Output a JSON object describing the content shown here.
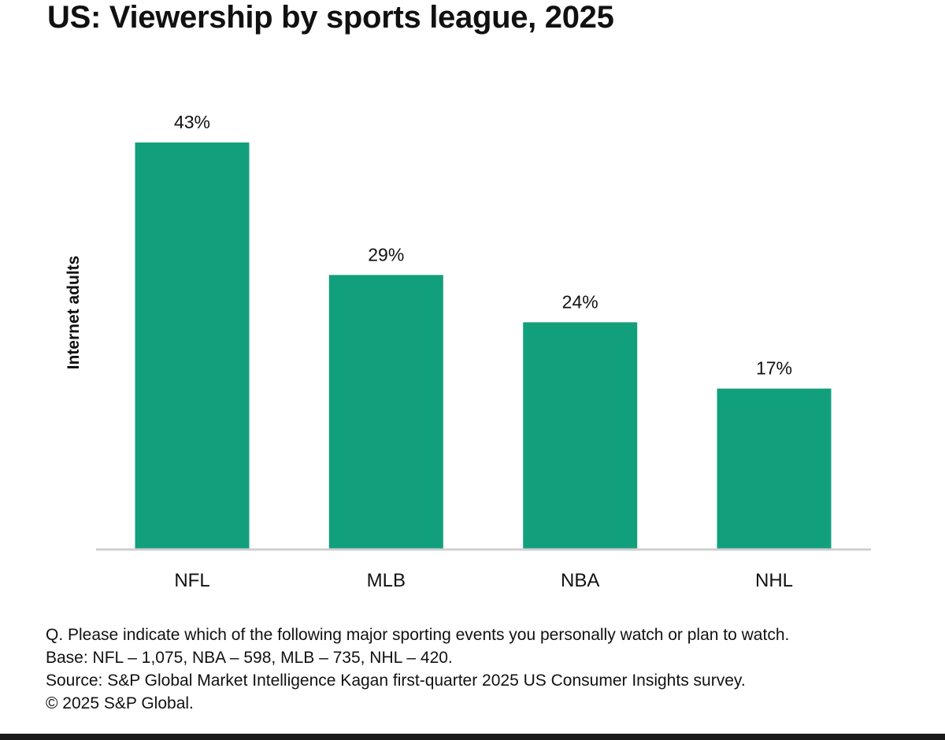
{
  "title": "US: Viewership by sports league, 2025",
  "colors": {
    "bar": "#12a07c",
    "axis": "#cfcfcf",
    "text": "#111111"
  },
  "chart_data": {
    "type": "bar",
    "categories": [
      "NFL",
      "MLB",
      "NBA",
      "NHL"
    ],
    "values": [
      43,
      29,
      24,
      17
    ],
    "value_labels": [
      "43%",
      "29%",
      "24%",
      "17%"
    ],
    "unit": "%",
    "title": "US: Viewership by sports league, 2025",
    "xlabel": "",
    "ylabel": "Internet adults",
    "ylim": [
      0,
      43
    ],
    "grid": false,
    "legend": "none"
  },
  "footnotes": {
    "question": "Q. Please indicate which of the following major sporting events you personally watch or plan to watch.",
    "base": "Base: NFL – 1,075, NBA – 598, MLB – 735, NHL – 420.",
    "source": "Source: S&P Global Market Intelligence Kagan first-quarter 2025 US Consumer Insights survey.",
    "copyright": "© 2025 S&P Global."
  }
}
